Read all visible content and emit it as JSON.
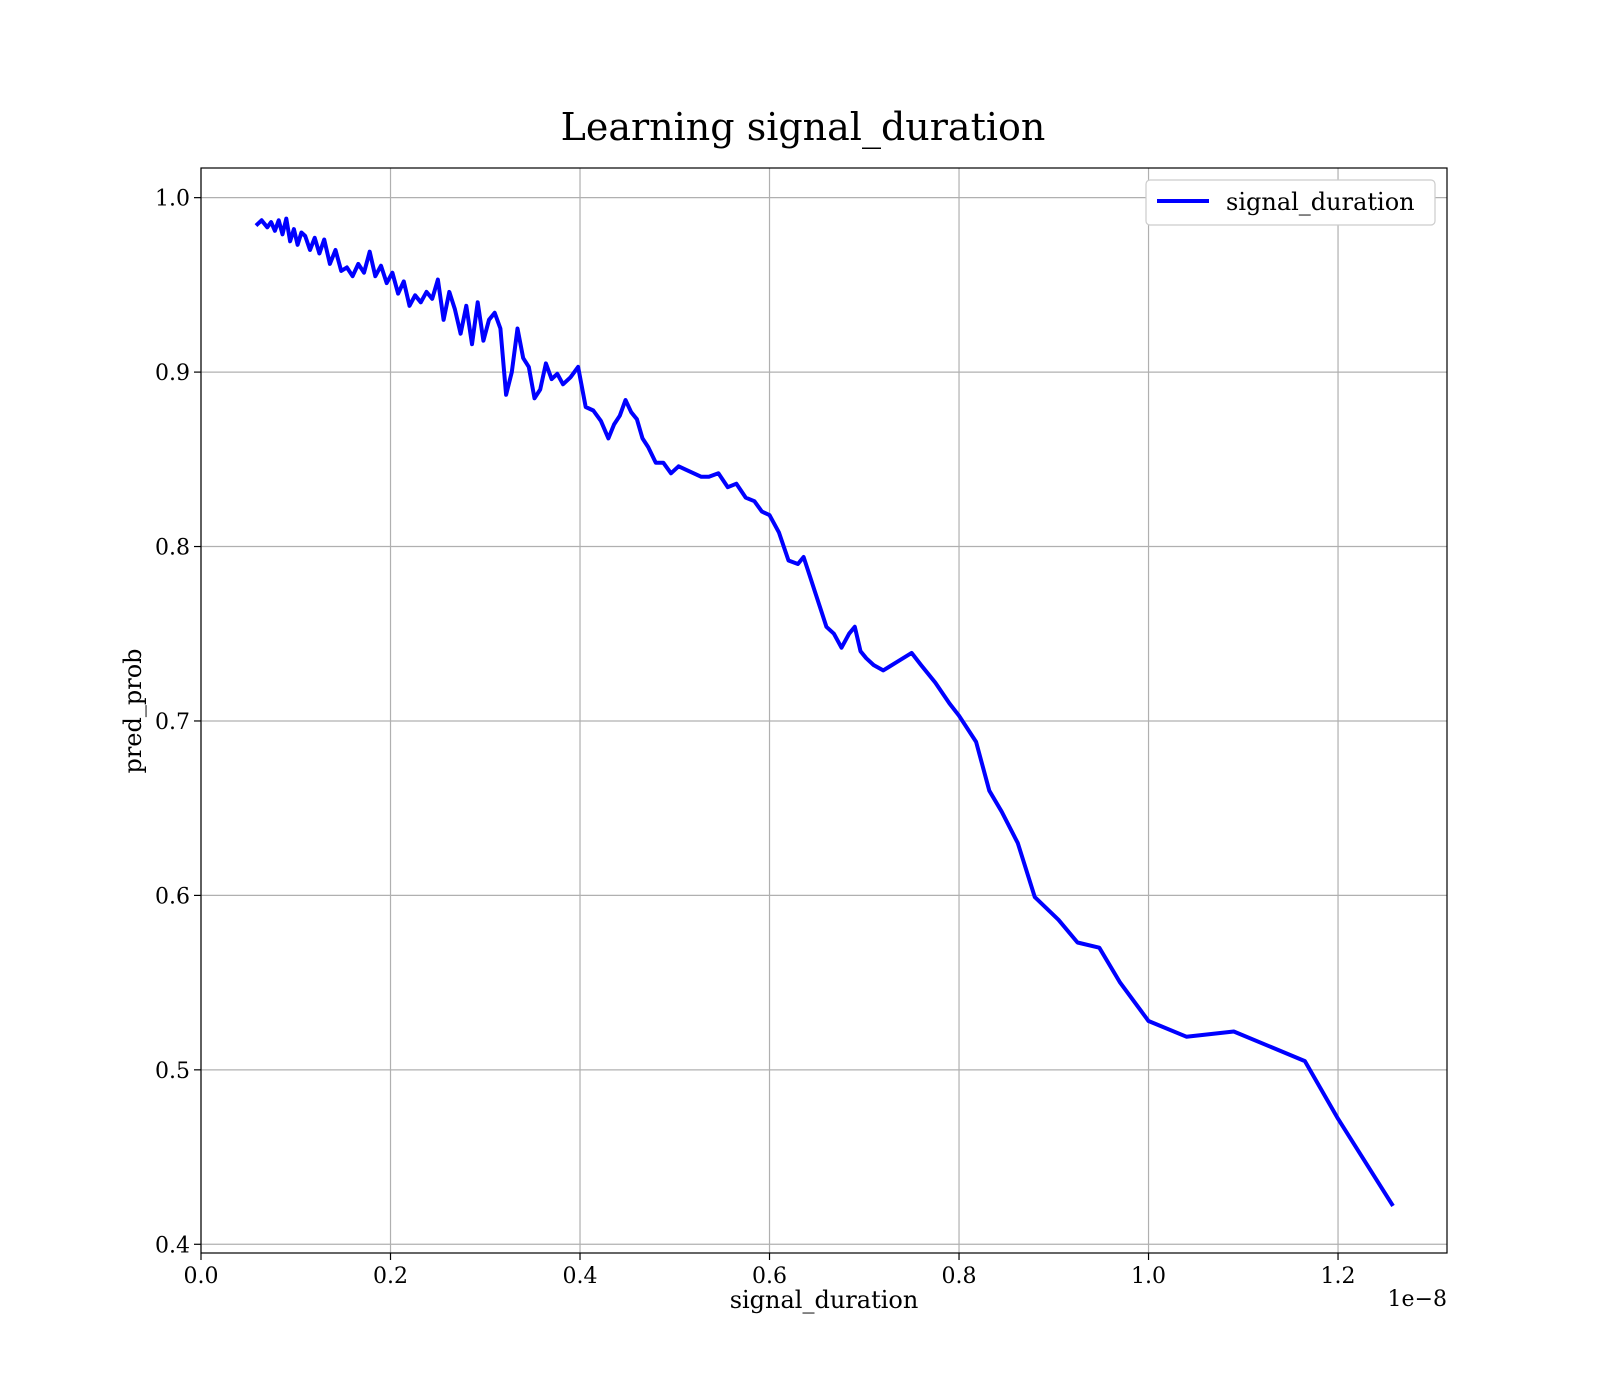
{
  "chart_data": {
    "type": "line",
    "title": "Learning signal_duration",
    "xlabel": "signal_duration",
    "ylabel": "pred_prob",
    "x_offset_text": "1e−8",
    "xlim": [
      0.0,
      1.315
    ],
    "ylim": [
      0.395,
      1.017
    ],
    "grid": true,
    "legend_position": "top-right",
    "x_ticks": [
      0.0,
      0.2,
      0.4,
      0.6,
      0.8,
      1.0,
      1.2
    ],
    "x_tick_labels": [
      "0.0",
      "0.2",
      "0.4",
      "0.6",
      "0.8",
      "1.0",
      "1.2"
    ],
    "y_ticks": [
      0.4,
      0.5,
      0.6,
      0.7,
      0.8,
      0.9,
      1.0
    ],
    "y_tick_labels": [
      "0.4",
      "0.5",
      "0.6",
      "0.7",
      "0.8",
      "0.9",
      "1.0"
    ],
    "series": [
      {
        "name": "signal_duration",
        "color": "#0000ff",
        "x": [
          0.058,
          0.064,
          0.07,
          0.074,
          0.078,
          0.082,
          0.086,
          0.09,
          0.094,
          0.098,
          0.102,
          0.106,
          0.11,
          0.115,
          0.12,
          0.125,
          0.13,
          0.136,
          0.142,
          0.148,
          0.154,
          0.16,
          0.166,
          0.172,
          0.178,
          0.184,
          0.19,
          0.196,
          0.202,
          0.208,
          0.214,
          0.22,
          0.226,
          0.232,
          0.238,
          0.244,
          0.25,
          0.256,
          0.262,
          0.268,
          0.274,
          0.28,
          0.286,
          0.292,
          0.298,
          0.304,
          0.31,
          0.316,
          0.322,
          0.328,
          0.334,
          0.34,
          0.346,
          0.352,
          0.358,
          0.364,
          0.37,
          0.376,
          0.382,
          0.39,
          0.398,
          0.406,
          0.414,
          0.422,
          0.43,
          0.436,
          0.442,
          0.448,
          0.454,
          0.46,
          0.466,
          0.472,
          0.48,
          0.488,
          0.496,
          0.504,
          0.512,
          0.52,
          0.528,
          0.536,
          0.546,
          0.556,
          0.565,
          0.575,
          0.584,
          0.592,
          0.6,
          0.61,
          0.62,
          0.63,
          0.636,
          0.642,
          0.648,
          0.654,
          0.66,
          0.668,
          0.676,
          0.684,
          0.69,
          0.696,
          0.702,
          0.71,
          0.72,
          0.735,
          0.75,
          0.76,
          0.775,
          0.79,
          0.8,
          0.818,
          0.832,
          0.845,
          0.862,
          0.88,
          0.905,
          0.925,
          0.948,
          0.97,
          1.0,
          1.04,
          1.09,
          1.165,
          1.2,
          1.258
        ],
        "y": [
          0.984,
          0.987,
          0.983,
          0.986,
          0.981,
          0.987,
          0.979,
          0.988,
          0.975,
          0.982,
          0.973,
          0.98,
          0.978,
          0.97,
          0.977,
          0.968,
          0.976,
          0.962,
          0.97,
          0.958,
          0.96,
          0.955,
          0.962,
          0.957,
          0.969,
          0.955,
          0.961,
          0.951,
          0.957,
          0.945,
          0.952,
          0.938,
          0.944,
          0.94,
          0.946,
          0.942,
          0.953,
          0.93,
          0.946,
          0.936,
          0.922,
          0.938,
          0.916,
          0.94,
          0.918,
          0.93,
          0.934,
          0.925,
          0.887,
          0.9,
          0.925,
          0.908,
          0.903,
          0.885,
          0.89,
          0.905,
          0.896,
          0.899,
          0.893,
          0.897,
          0.903,
          0.88,
          0.878,
          0.872,
          0.862,
          0.87,
          0.875,
          0.884,
          0.877,
          0.873,
          0.862,
          0.857,
          0.848,
          0.848,
          0.842,
          0.846,
          0.844,
          0.842,
          0.84,
          0.84,
          0.842,
          0.834,
          0.836,
          0.828,
          0.826,
          0.82,
          0.818,
          0.808,
          0.792,
          0.79,
          0.794,
          0.784,
          0.774,
          0.764,
          0.754,
          0.75,
          0.742,
          0.75,
          0.754,
          0.74,
          0.736,
          0.732,
          0.729,
          0.734,
          0.739,
          0.732,
          0.722,
          0.71,
          0.703,
          0.688,
          0.66,
          0.648,
          0.63,
          0.599,
          0.586,
          0.573,
          0.57,
          0.55,
          0.528,
          0.519,
          0.522,
          0.505,
          0.472,
          0.422
        ]
      }
    ]
  }
}
